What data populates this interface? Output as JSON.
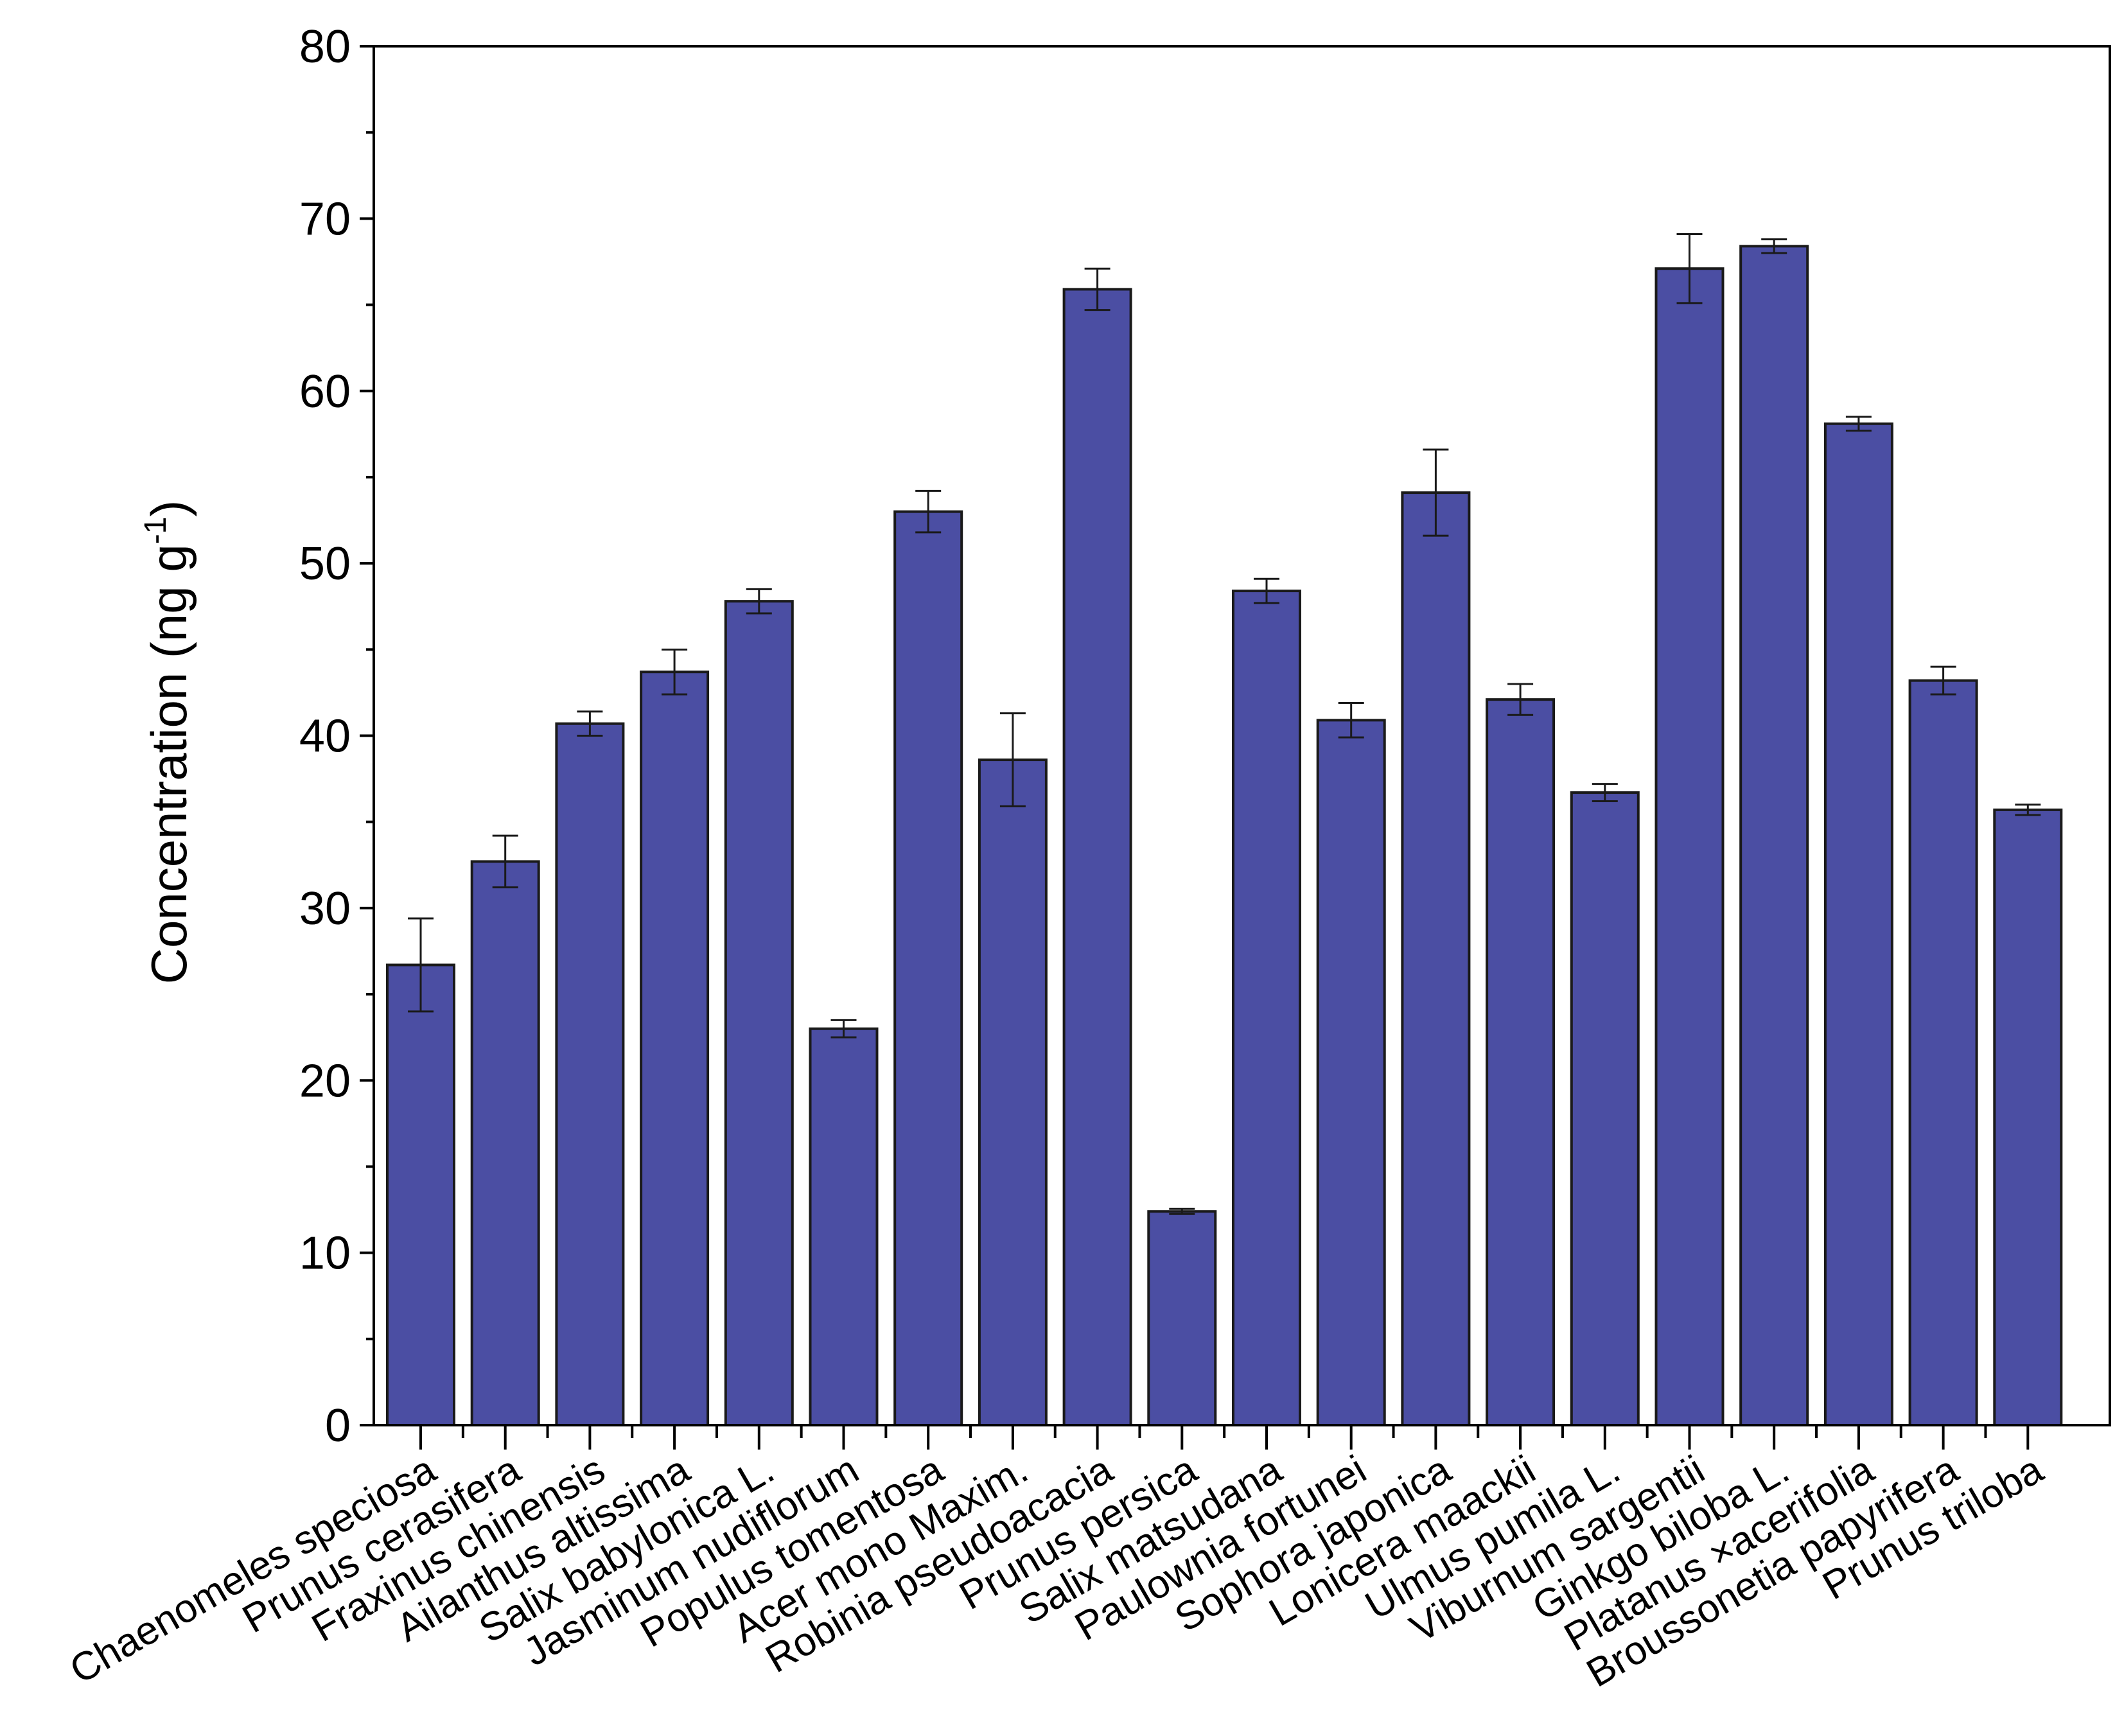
{
  "chart_data": {
    "type": "bar",
    "ylabel_main": "Concentration (ng g",
    "ylabel_sup": "-1",
    "ylabel_end": ")",
    "ylim": [
      0,
      80
    ],
    "yticks": [
      0,
      10,
      20,
      30,
      40,
      50,
      60,
      70,
      80
    ],
    "grid": false,
    "bar_color": "#4b4ea3",
    "categories": [
      "Chaenomeles speciosa",
      "Prunus cerasifera",
      "Fraxinus chinensis",
      "Ailanthus altissima",
      "Salix babylonica L.",
      "Jasminum nudiflorum",
      "Populus tomentosa",
      "Acer mono Maxim.",
      "Robinia pseudoacacia",
      "Prunus persica",
      "Salix matsudana",
      "Paulownia fortunei",
      "Sophora japonica",
      "Lonicera maackii",
      "Ulmus pumila L.",
      "Viburnum sargentii",
      "Ginkgo biloba L.",
      "Platanus ×acerifolia",
      "Broussonetia papyrifera",
      "Prunus triloba"
    ],
    "values": [
      26.7,
      32.7,
      40.7,
      43.7,
      47.8,
      23.0,
      53.0,
      38.6,
      65.9,
      12.4,
      48.4,
      40.9,
      54.1,
      42.1,
      36.7,
      67.1,
      68.4,
      58.1,
      43.2,
      35.7
    ],
    "errors": [
      2.7,
      1.5,
      0.7,
      1.3,
      0.7,
      0.5,
      1.2,
      2.7,
      1.2,
      0.15,
      0.7,
      1.0,
      2.5,
      0.9,
      0.5,
      2.0,
      0.4,
      0.4,
      0.8,
      0.3
    ]
  }
}
